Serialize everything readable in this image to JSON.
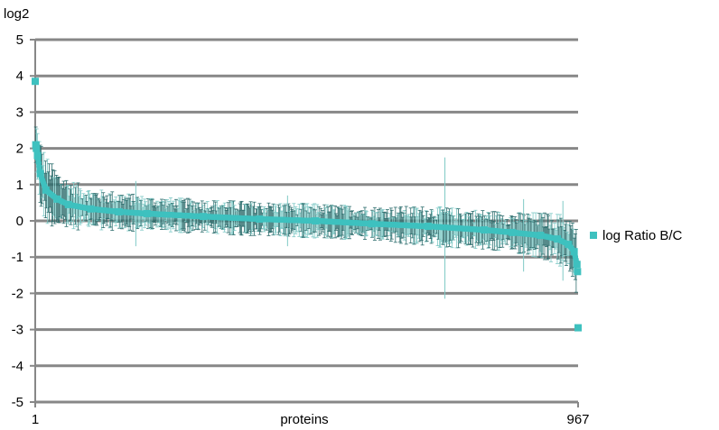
{
  "chart_data": {
    "type": "scatter",
    "title": "",
    "ylabel": "log2",
    "xlabel": "proteins",
    "xlim": [
      1,
      967
    ],
    "ylim": [
      -5,
      5
    ],
    "y_ticks": [
      5,
      4,
      3,
      2,
      1,
      0,
      -1,
      -2,
      -3,
      -4,
      -5
    ],
    "y_tick_labels": [
      "5",
      "4",
      "3",
      "2",
      "1",
      "0",
      "-1",
      "-2",
      "-3",
      "-4",
      "-5"
    ],
    "x_tick_labels": [
      "1",
      "967"
    ],
    "grid": "horizontal",
    "legend_position": "right",
    "error_bars": true,
    "series": [
      {
        "name": "log Ratio  B/C",
        "color": "#3EC1BF",
        "errorbar_color": "#2E6E6E",
        "x": [
          1,
          2,
          3,
          5,
          10,
          20,
          40,
          60,
          100,
          150,
          200,
          300,
          400,
          500,
          600,
          700,
          800,
          850,
          900,
          930,
          950,
          960,
          965,
          966,
          967
        ],
        "values": [
          3.85,
          2.1,
          2.0,
          1.8,
          1.3,
          0.85,
          0.6,
          0.45,
          0.33,
          0.25,
          0.2,
          0.12,
          0.05,
          0.0,
          -0.08,
          -0.15,
          -0.25,
          -0.32,
          -0.4,
          -0.5,
          -0.65,
          -0.85,
          -1.2,
          -1.4,
          -2.95
        ],
        "errors": [
          0.0,
          0.4,
          0.5,
          0.5,
          0.6,
          0.6,
          0.5,
          0.45,
          0.35,
          0.35,
          0.3,
          0.3,
          0.3,
          0.3,
          0.3,
          0.35,
          0.35,
          0.35,
          0.4,
          0.45,
          0.5,
          0.5,
          0.6,
          0.4,
          0.45
        ]
      }
    ]
  }
}
